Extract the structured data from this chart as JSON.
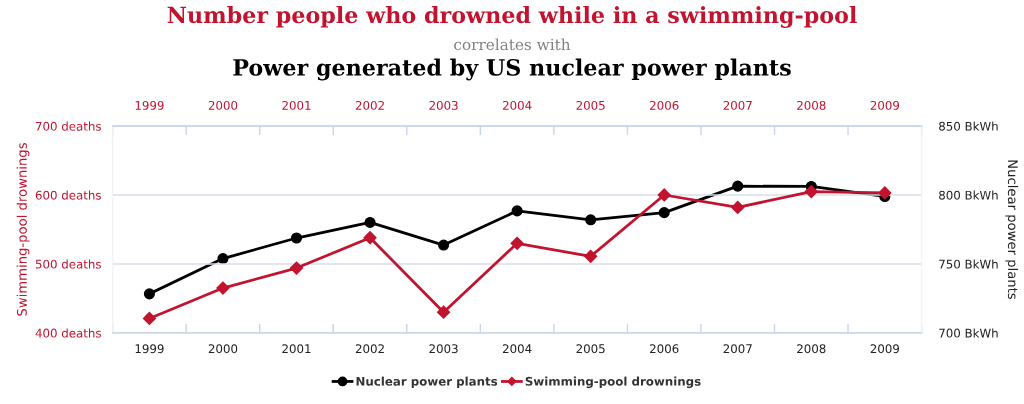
{
  "chart_data": {
    "type": "line",
    "title": "Number people who drowned while in a swimming-pool",
    "subtitle": "correlates with",
    "annotations": [
      "Power generated by US nuclear power plants"
    ],
    "x": [
      1999,
      2000,
      2001,
      2002,
      2003,
      2004,
      2005,
      2006,
      2007,
      2008,
      2009
    ],
    "xlim": [
      1998.5,
      2009.5
    ],
    "xticks": [
      1999,
      2000,
      2001,
      2002,
      2003,
      2004,
      2005,
      2006,
      2007,
      2008,
      2009
    ],
    "x2lim": [
      1998.5,
      2009.5
    ],
    "x2ticks": [
      1999,
      2000,
      2001,
      2002,
      2003,
      2004,
      2005,
      2006,
      2007,
      2008,
      2009
    ],
    "ylabel": "Swimming-pool drownings",
    "y2label": "Nuclear power plants",
    "ylim": [
      400,
      700
    ],
    "yticks": [
      {
        "value": 400,
        "label": "400 deaths"
      },
      {
        "value": 500,
        "label": "500 deaths"
      },
      {
        "value": 600,
        "label": "600 deaths"
      },
      {
        "value": 700,
        "label": "700 deaths"
      }
    ],
    "y2lim": [
      700,
      850
    ],
    "y2ticks": [
      {
        "value": 700,
        "label": "700 BkWh"
      },
      {
        "value": 750,
        "label": "750 BkWh"
      },
      {
        "value": 800,
        "label": "800 BkWh"
      },
      {
        "value": 850,
        "label": "850 BkWh"
      }
    ],
    "grid": "y",
    "legend": "bottom",
    "series": [
      {
        "name": "Nuclear power plants",
        "color": "#000000",
        "axis": "y2",
        "marker": "circle",
        "values": [
          728.3,
          753.9,
          768.8,
          780.1,
          763.7,
          788.5,
          782.0,
          787.2,
          806.4,
          806.2,
          798.9
        ]
      },
      {
        "name": "Swimming-pool drownings",
        "color": "#c2132f",
        "axis": "y",
        "marker": "diamond",
        "values": [
          421,
          465,
          494,
          538,
          430,
          530,
          511,
          600,
          582,
          605,
          603
        ]
      }
    ]
  }
}
